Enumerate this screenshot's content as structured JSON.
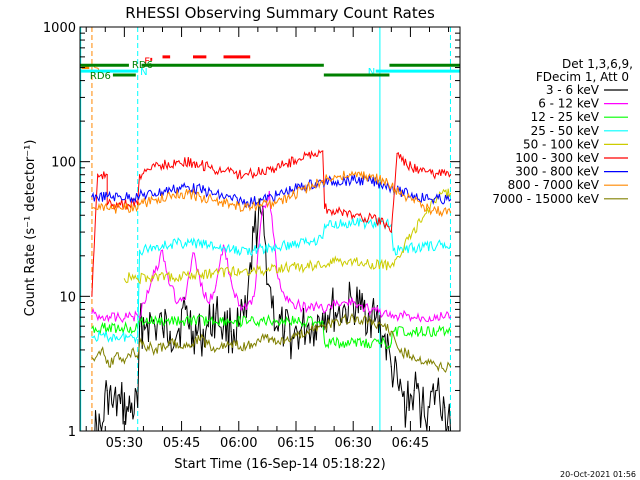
{
  "chart_data": {
    "type": "line",
    "title": "RHESSI Observing Summary Count Rates",
    "xlabel": "Start Time (16-Sep-14 05:18:22)",
    "ylabel": "Count Rate (s⁻¹ detector⁻¹)",
    "yscale": "log",
    "ylim": [
      1,
      1000
    ],
    "xlim_minutes": [
      18.37,
      118.0
    ],
    "x_ticks": [
      {
        "m": 30,
        "label": "05:30"
      },
      {
        "m": 45,
        "label": "05:45"
      },
      {
        "m": 60,
        "label": "06:00"
      },
      {
        "m": 75,
        "label": "06:15"
      },
      {
        "m": 90,
        "label": "06:30"
      },
      {
        "m": 105,
        "label": "06:45"
      }
    ],
    "y_ticks": [
      {
        "v": 1,
        "label": "1"
      },
      {
        "v": 10,
        "label": "10"
      },
      {
        "v": 100,
        "label": "100"
      },
      {
        "v": 1000,
        "label": "1000"
      }
    ],
    "legend_header": [
      "Det 1,3,6,9,",
      "FDecim 1, Att 0"
    ],
    "series": [
      {
        "name": "3 - 6 keV",
        "color": "#000000",
        "x": [
          21.5,
          24,
          25.5,
          27,
          29,
          31,
          33.5,
          34,
          36,
          38,
          40,
          42,
          44,
          46,
          48,
          50,
          52,
          54,
          56,
          58,
          60,
          62,
          64,
          66,
          68,
          70,
          72,
          74,
          76,
          78,
          80,
          82,
          84,
          86,
          88,
          90,
          92,
          94,
          96,
          98,
          100,
          102,
          104,
          106,
          108,
          110,
          112,
          114,
          115.5
        ],
        "y": [
          1.0,
          1.0,
          2.0,
          1.5,
          1.6,
          1.4,
          1.5,
          6.0,
          6.5,
          6.0,
          5.8,
          5.5,
          5.5,
          8.0,
          5.5,
          5.0,
          6.0,
          7.5,
          6.0,
          5.5,
          6.0,
          7.0,
          30.0,
          40.0,
          12.0,
          6.0,
          5.5,
          5.0,
          5.5,
          6.0,
          6.0,
          7.5,
          8.0,
          7.5,
          8.0,
          9.0,
          8.0,
          7.5,
          7.0,
          5.0,
          3.0,
          2.0,
          1.5,
          2.0,
          1.5,
          1.5,
          2.0,
          1.5,
          1.0
        ]
      },
      {
        "name": "6 - 12 keV",
        "color": "#ff00ff",
        "x": [
          21.5,
          24,
          25.5,
          28,
          31,
          33.5,
          34,
          36,
          38,
          40,
          42,
          44,
          46,
          48,
          50,
          52,
          54,
          56,
          58,
          60,
          62,
          64,
          66,
          68,
          70,
          72,
          74,
          76,
          78,
          80,
          82,
          84,
          86,
          88,
          90,
          92,
          94,
          96,
          98,
          100,
          102,
          104,
          106,
          108,
          110,
          112,
          114,
          115.5
        ],
        "y": [
          7.5,
          7.0,
          7.2,
          7.0,
          7.0,
          7.2,
          7.0,
          11.0,
          15.0,
          22.0,
          12.0,
          9.0,
          9.5,
          21.0,
          12.0,
          9.0,
          12.0,
          24.0,
          13.0,
          8.5,
          8.0,
          10.0,
          40.0,
          60.0,
          15.0,
          10.0,
          9.0,
          8.5,
          8.0,
          8.5,
          8.0,
          8.5,
          8.8,
          9.0,
          9.0,
          8.5,
          8.0,
          7.8,
          7.5,
          7.0,
          7.0,
          7.2,
          7.0,
          7.0,
          7.0,
          7.2,
          7.0,
          7.0
        ]
      },
      {
        "name": "12 - 25 keV",
        "color": "#00ff00",
        "x": [
          21.5,
          25.5,
          30,
          33.5,
          34,
          40,
          46,
          52,
          58,
          64,
          70,
          76,
          82,
          82.5,
          88,
          94,
          100,
          100.5,
          106,
          112,
          115.5
        ],
        "y": [
          5.8,
          5.8,
          5.8,
          5.8,
          6.5,
          6.5,
          6.6,
          6.6,
          6.5,
          6.5,
          6.6,
          6.5,
          6.5,
          4.5,
          4.5,
          4.5,
          4.5,
          5.5,
          5.5,
          5.5,
          5.5
        ]
      },
      {
        "name": "25 - 50 keV",
        "color": "#00ffff",
        "x": [
          21.5,
          25.5,
          28,
          31,
          33.5,
          34,
          40,
          46,
          52,
          58,
          64,
          70,
          76,
          82,
          82.5,
          88,
          94,
          100,
          100.5,
          106,
          112,
          115.5
        ],
        "y": [
          5.0,
          5.0,
          5.0,
          5.0,
          5.0,
          22.0,
          24.0,
          25.0,
          24.0,
          22.0,
          22.0,
          23.0,
          25.0,
          27.0,
          34.0,
          35.0,
          35.0,
          34.0,
          22.0,
          23.0,
          24.0,
          24.0
        ]
      },
      {
        "name": "50 - 100 keV",
        "color": "#cccc00",
        "x": [
          30,
          31.5,
          33.5,
          82.5,
          85,
          90,
          95,
          100,
          112,
          114,
          115.5
        ],
        "y": [
          13.5,
          14.0,
          13.5,
          17.0,
          18.0,
          18.0,
          17.5,
          17.0,
          55.0,
          60.0,
          58.0
        ]
      },
      {
        "name": "100 - 300 keV",
        "color": "#ff0000",
        "x": [
          21.5,
          23,
          24,
          25.5,
          25.5,
          27,
          29,
          31,
          33.5,
          34,
          36,
          38,
          40,
          44,
          48,
          52,
          56,
          60,
          64,
          68,
          72,
          76,
          80,
          82,
          82.5,
          86,
          90,
          94,
          98,
          100,
          101.5,
          104,
          108,
          112,
          115.5
        ],
        "y": [
          10.0,
          80.0,
          80.0,
          80.0,
          48.0,
          48.0,
          48.0,
          48.0,
          48.0,
          80.0,
          88.0,
          92.0,
          95.0,
          100.0,
          98.0,
          92.0,
          85.0,
          80.0,
          82.0,
          88.0,
          95.0,
          105.0,
          115.0,
          120.0,
          45.0,
          42.0,
          40.0,
          38.0,
          35.0,
          30.0,
          115.0,
          95.0,
          85.0,
          82.0,
          80.0
        ]
      },
      {
        "name": "300 - 800 keV",
        "color": "#0000ff",
        "x": [
          21.5,
          25.5,
          29,
          33.5,
          34,
          38,
          42,
          46,
          50,
          54,
          58,
          62,
          66,
          70,
          74,
          78,
          82,
          86,
          90,
          94,
          98,
          100,
          102,
          106,
          110,
          115.5
        ],
        "y": [
          55.0,
          55.0,
          55.0,
          55.0,
          56.0,
          58.0,
          62.0,
          65.0,
          62.0,
          57.0,
          53.0,
          50.0,
          52.0,
          56.0,
          62.0,
          67.0,
          70.0,
          72.0,
          73.0,
          72.0,
          68.0,
          65.0,
          60.0,
          56.0,
          53.0,
          52.0
        ]
      },
      {
        "name": "800 - 7000 keV",
        "color": "#ff8800",
        "x": [
          21.5,
          25.5,
          29,
          33.5,
          34,
          38,
          42,
          46,
          50,
          54,
          58,
          62,
          66,
          70,
          74,
          78,
          82,
          86,
          90,
          94,
          98,
          100,
          102,
          106,
          110,
          115.5
        ],
        "y": [
          45.0,
          45.0,
          45.0,
          45.0,
          48.0,
          52.0,
          56.0,
          58.0,
          55.0,
          51.0,
          48.0,
          46.0,
          47.0,
          50.0,
          56.0,
          64.0,
          72.0,
          78.0,
          80.0,
          78.0,
          72.0,
          65.0,
          58.0,
          50.0,
          45.0,
          42.0
        ]
      },
      {
        "name": "7000 - 15000 keV",
        "color": "#808000",
        "x": [
          21.5,
          24,
          26,
          28,
          30,
          32,
          33.5,
          34,
          38,
          42,
          46,
          50,
          54,
          58,
          62,
          66,
          70,
          74,
          78,
          82,
          86,
          90,
          94,
          98,
          100,
          102,
          106,
          110,
          112,
          115.5
        ],
        "y": [
          3.5,
          4.0,
          3.0,
          3.8,
          3.2,
          4.0,
          3.5,
          4.5,
          4.0,
          4.5,
          4.2,
          4.8,
          4.0,
          4.5,
          4.2,
          5.0,
          4.5,
          5.0,
          5.5,
          6.0,
          6.5,
          7.0,
          6.5,
          6.0,
          5.5,
          4.0,
          3.5,
          3.2,
          3.0,
          3.0
        ]
      }
    ],
    "markers": [
      {
        "label": "S",
        "color": "#ff8800",
        "y": 500,
        "x1": 18.8,
        "x2": 20.8
      },
      {
        "label": "N",
        "color": "#00ffff",
        "y": 470,
        "x1": 18.5,
        "x2": 33.6
      },
      {
        "label": "N",
        "color": "#00ffff",
        "y": 470,
        "x1": 95.9,
        "x2": 118.0
      },
      {
        "label": "F",
        "color": "#ff0000",
        "y": 575,
        "x1": 36.8,
        "x2": 37.3
      },
      {
        "label": "",
        "color": "#ff0000",
        "y": 600,
        "x1": 40.0,
        "x2": 42.0
      },
      {
        "label": "",
        "color": "#ff0000",
        "y": 600,
        "x1": 48.0,
        "x2": 51.5
      },
      {
        "label": "",
        "color": "#ff0000",
        "y": 600,
        "x1": 56.0,
        "x2": 63.0
      },
      {
        "label": "RD6",
        "color": "#008000",
        "y": 520,
        "x1": 18.5,
        "x2": 31.2
      },
      {
        "label": "RD6",
        "color": "#008000",
        "y": 440,
        "x1": 27.0,
        "x2": 33.0
      },
      {
        "label": "",
        "color": "#008000",
        "y": 520,
        "x1": 34.5,
        "x2": 82.3
      },
      {
        "label": "",
        "color": "#008000",
        "y": 440,
        "x1": 82.3,
        "x2": 99.5
      },
      {
        "label": "",
        "color": "#008000",
        "y": 520,
        "x1": 99.5,
        "x2": 118.0
      }
    ],
    "night_bounds": [
      {
        "m": 18.55,
        "color": "#00ffff",
        "style": "solid"
      },
      {
        "m": 21.5,
        "color": "#ff8800",
        "style": "dash"
      },
      {
        "m": 33.5,
        "color": "#00ffff",
        "style": "dash"
      },
      {
        "m": 97.0,
        "color": "#00ffff",
        "style": "solid"
      },
      {
        "m": 115.5,
        "color": "#00ffff",
        "style": "dash"
      }
    ],
    "grid": false,
    "legend_position": "right",
    "timestamp": "20-Oct-2021 01:56"
  }
}
